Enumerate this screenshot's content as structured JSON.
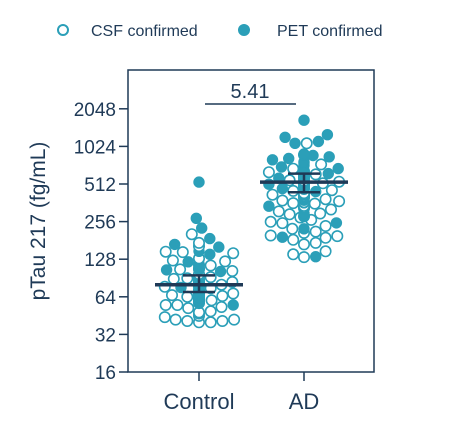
{
  "chart_data": {
    "type": "scatter",
    "subtype": "beeswarm",
    "ylabel": "pTau 217 (fg/mL)",
    "yscale": "log2",
    "ylim": [
      16,
      4096
    ],
    "yticks": [
      16,
      32,
      64,
      128,
      256,
      512,
      1024,
      2048
    ],
    "ytick_labels": [
      "16",
      "32",
      "64",
      "128",
      "256",
      "512",
      "1024",
      "2048"
    ],
    "categories": [
      "Control",
      "AD"
    ],
    "legend": {
      "placement": "top",
      "entries": [
        {
          "label": "CSF confirmed",
          "marker": "open-circle"
        },
        {
          "label": "PET confirmed",
          "marker": "filled-circle"
        }
      ]
    },
    "colors": {
      "point": "#2b9fb8",
      "axis": "#1f3a57",
      "summary": "#1f3a57"
    },
    "annotations": [
      {
        "text": "5.41",
        "between": [
          "Control",
          "AD"
        ]
      }
    ],
    "summary_stats": [
      {
        "category": "Control",
        "central": 80,
        "lower": 70,
        "upper": 95
      },
      {
        "category": "AD",
        "central": 530,
        "lower": 440,
        "upper": 620
      }
    ],
    "series": [
      {
        "name": "CSF confirmed",
        "category": "Control",
        "values": [
          40,
          40,
          41,
          41,
          42,
          42,
          44,
          45,
          47,
          48,
          49,
          52,
          53,
          55,
          55,
          57,
          58,
          59,
          59,
          60,
          60,
          61,
          61,
          61,
          62,
          62,
          62,
          63,
          63,
          64,
          64,
          64,
          64,
          65,
          65,
          65,
          65,
          66,
          67,
          67,
          68,
          68,
          69,
          69,
          70,
          72,
          72,
          72,
          75,
          77,
          78,
          78,
          80,
          83,
          83,
          84,
          85,
          87,
          88,
          89,
          90,
          90,
          92,
          96,
          97,
          103,
          106,
          106,
          108,
          114,
          115,
          123,
          125,
          130,
          143,
          146,
          147,
          163,
          173,
          203
        ]
      },
      {
        "name": "PET confirmed",
        "category": "Control",
        "values": [
          55,
          60,
          63,
          64,
          65,
          66,
          70,
          73,
          76,
          77,
          79,
          80,
          82,
          85,
          89,
          92,
          95,
          96,
          102,
          105,
          108,
          111,
          117,
          122,
          128,
          140,
          148,
          160,
          168,
          187,
          227,
          272,
          530
        ]
      },
      {
        "name": "CSF confirmed",
        "category": "AD",
        "values": [
          133,
          140,
          148,
          168,
          173,
          183,
          190,
          196,
          198,
          208,
          213,
          224,
          236,
          249,
          255,
          264,
          276,
          282,
          293,
          297,
          309,
          320,
          328,
          333,
          342,
          357,
          360,
          366,
          373,
          378,
          387,
          398,
          404,
          412,
          420,
          426,
          426,
          433,
          451,
          457,
          467,
          484,
          498,
          503,
          504,
          519,
          520,
          530,
          534,
          542,
          548,
          567,
          579,
          583,
          592,
          594,
          611,
          636,
          648,
          679,
          735,
          876,
          1085
        ]
      },
      {
        "name": "PET confirmed",
        "category": "AD",
        "values": [
          134,
          192,
          224,
          250,
          283,
          298,
          340,
          362,
          380,
          400,
          420,
          445,
          470,
          490,
          510,
          540,
          570,
          600,
          620,
          650,
          680,
          700,
          720,
          750,
          770,
          800,
          820,
          846,
          866,
          876,
          890,
          1085,
          1120,
          1211,
          1271,
          1660
        ]
      }
    ]
  }
}
